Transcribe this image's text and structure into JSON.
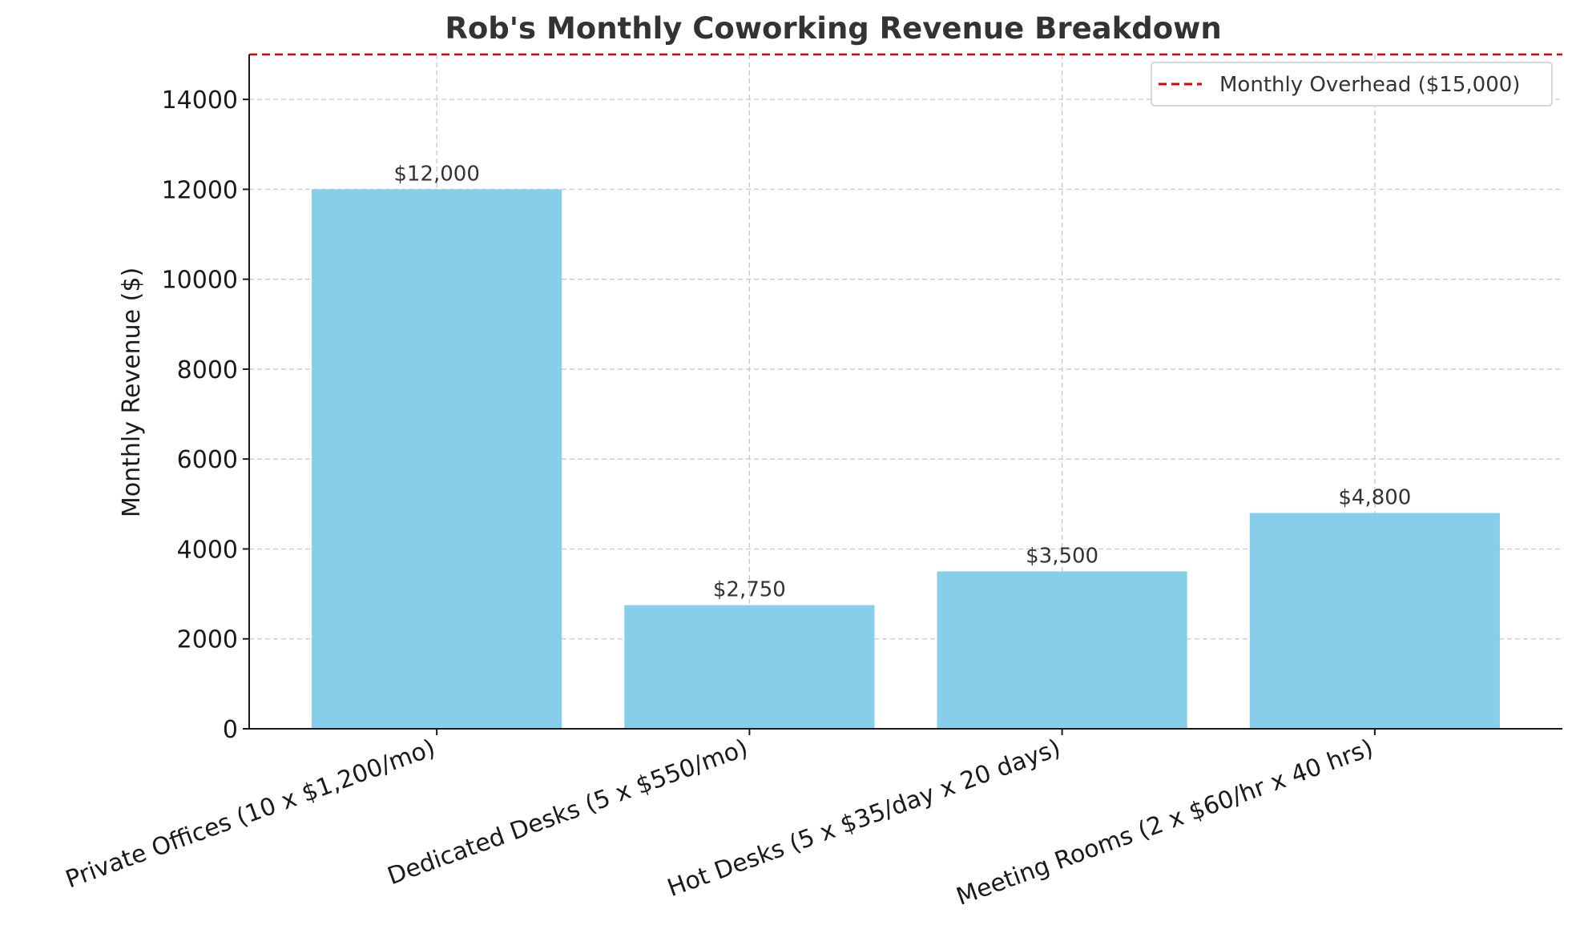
{
  "chart_data": {
    "type": "bar",
    "title": "Rob's Monthly Coworking Revenue Breakdown",
    "xlabel": "",
    "ylabel": "Monthly Revenue ($)",
    "ylim": [
      0,
      15000
    ],
    "yticks": [
      0,
      2000,
      4000,
      6000,
      8000,
      10000,
      12000,
      14000
    ],
    "ytick_labels": [
      "0",
      "2000",
      "4000",
      "6000",
      "8000",
      "10000",
      "12000",
      "14000"
    ],
    "categories": [
      "Private Offices (10 x $1,200/mo)",
      "Dedicated Desks (5 x $550/mo)",
      "Hot Desks (5 x $35/day x 20 days)",
      "Meeting Rooms (2 x $60/hr x 40 hrs)"
    ],
    "values": [
      12000,
      2750,
      3500,
      4800
    ],
    "data_labels": [
      "$12,000",
      "$2,750",
      "$3,500",
      "$4,800"
    ],
    "bar_color": "#87ceeb",
    "reference_line": {
      "value": 15000,
      "label": "Monthly Overhead ($15,000)",
      "color": "#dd0000",
      "style": "dashed"
    },
    "grid": true,
    "legend_position": "top-right"
  }
}
